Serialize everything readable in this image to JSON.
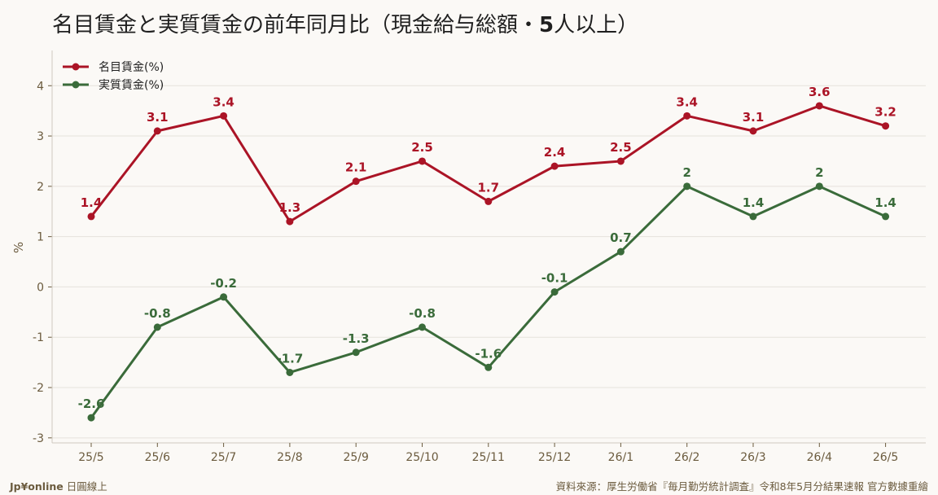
{
  "header": {
    "title_main": "名目賃金と実質賃金の前年同月比（現金給与総額・",
    "title_bold": "5",
    "title_tail": "人以上）"
  },
  "footer": {
    "brand_logo": "Jp¥online",
    "brand_text": "日圓線上",
    "source": "資料來源：厚生労働省『毎月勤労統計調査』令和8年5月分結果速報 官方數據重繪"
  },
  "colors": {
    "nominal": "#ab1426",
    "real": "#3a6b3a",
    "grid": "#e6e2dc",
    "axis": "#6b5b3e"
  },
  "chart_data": {
    "type": "line",
    "categories": [
      "25/5",
      "25/6",
      "25/7",
      "25/8",
      "25/9",
      "25/10",
      "25/11",
      "25/12",
      "26/1",
      "26/2",
      "26/3",
      "26/4",
      "26/5"
    ],
    "series": [
      {
        "name": "名目賃金(%)",
        "values": [
          1.4,
          3.1,
          3.4,
          1.3,
          2.1,
          2.5,
          1.7,
          2.4,
          2.5,
          3.4,
          3.1,
          3.6,
          3.2
        ],
        "labels": [
          "1.4",
          "3.1",
          "3.4",
          "1.3",
          "2.1",
          "2.5",
          "1.7",
          "2.4",
          "2.5",
          "3.4",
          "3.1",
          "3.6",
          "3.2"
        ]
      },
      {
        "name": "実質賃金(%)",
        "values": [
          -2.6,
          -0.8,
          -0.2,
          -1.7,
          -1.3,
          -0.8,
          -1.6,
          -0.1,
          0.7,
          2,
          1.4,
          2,
          1.4
        ],
        "labels": [
          "-2.6",
          "-0.8",
          "-0.2",
          "-1.7",
          "-1.3",
          "-0.8",
          "-1.6",
          "-0.1",
          "0.7",
          "2",
          "1.4",
          "2",
          "1.4"
        ]
      }
    ],
    "ylabel": "%",
    "ylim": [
      -3.1,
      4.7
    ],
    "yticks": [
      4,
      3,
      2,
      1,
      0,
      -1,
      -2,
      -3
    ],
    "ytick_labels": [
      "4",
      "3",
      "2",
      "1",
      "0",
      "-1",
      "-2",
      "-3"
    ],
    "grid": true,
    "legend": "top-left"
  }
}
